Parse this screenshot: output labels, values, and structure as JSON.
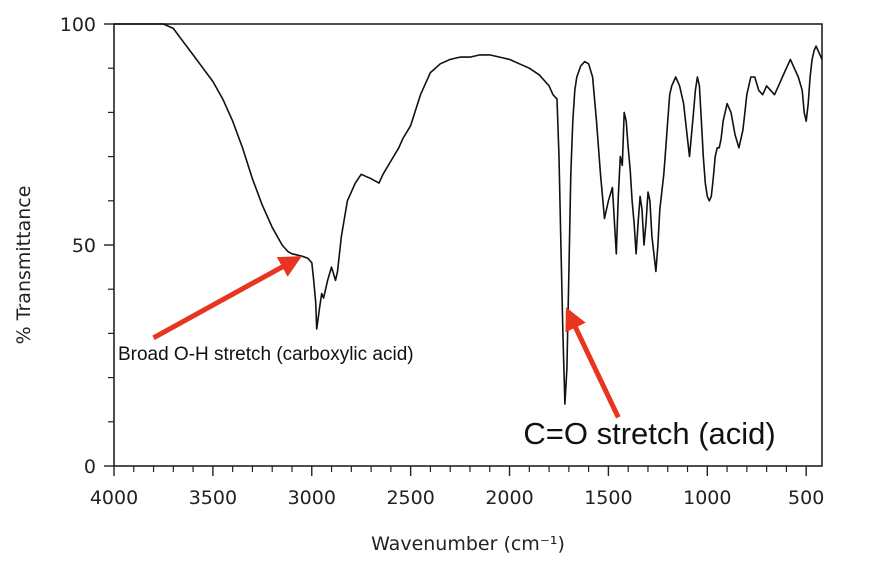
{
  "chart_data": {
    "type": "line",
    "title": "",
    "xlabel": "Wavenumber (cm⁻¹)",
    "ylabel": "% Transmittance",
    "xlim": [
      4000,
      420
    ],
    "ylim": [
      0,
      100
    ],
    "x_ticks": [
      4000,
      3500,
      3000,
      2500,
      2000,
      1500,
      1000,
      500
    ],
    "y_ticks": [
      0,
      50,
      100
    ],
    "x_tick_labels": [
      "4000",
      "3500",
      "3000",
      "2500",
      "2000",
      "1500",
      "1000",
      "500"
    ],
    "y_tick_labels": [
      "0",
      "50",
      "100"
    ],
    "grid": false,
    "series": [
      {
        "color": "#111111",
        "x": [
          4000,
          3900,
          3800,
          3750,
          3700,
          3650,
          3600,
          3550,
          3500,
          3450,
          3400,
          3350,
          3300,
          3250,
          3200,
          3150,
          3120,
          3100,
          3080,
          3050,
          3020,
          3000,
          2990,
          2980,
          2975,
          2960,
          2950,
          2940,
          2930,
          2920,
          2900,
          2880,
          2870,
          2850,
          2820,
          2780,
          2750,
          2700,
          2680,
          2660,
          2640,
          2600,
          2560,
          2540,
          2500,
          2450,
          2400,
          2350,
          2300,
          2250,
          2200,
          2150,
          2100,
          2050,
          2000,
          1950,
          1900,
          1850,
          1800,
          1780,
          1760,
          1750,
          1740,
          1730,
          1720,
          1710,
          1700,
          1690,
          1680,
          1670,
          1660,
          1640,
          1620,
          1600,
          1580,
          1560,
          1540,
          1520,
          1500,
          1480,
          1460,
          1450,
          1440,
          1430,
          1420,
          1410,
          1400,
          1390,
          1380,
          1370,
          1360,
          1350,
          1340,
          1330,
          1320,
          1310,
          1300,
          1290,
          1280,
          1270,
          1260,
          1250,
          1240,
          1230,
          1220,
          1210,
          1200,
          1190,
          1180,
          1170,
          1160,
          1140,
          1120,
          1100,
          1090,
          1080,
          1070,
          1060,
          1050,
          1040,
          1030,
          1020,
          1010,
          1000,
          990,
          980,
          970,
          960,
          950,
          940,
          930,
          920,
          910,
          900,
          880,
          860,
          840,
          820,
          810,
          800,
          790,
          780,
          760,
          740,
          720,
          700,
          680,
          660,
          640,
          620,
          600,
          580,
          560,
          540,
          520,
          510,
          500,
          490,
          480,
          470,
          460,
          450,
          440,
          430,
          420
        ],
        "y": [
          100,
          100,
          100,
          100,
          99,
          96,
          93,
          90,
          87,
          83,
          78,
          72,
          65,
          59,
          54,
          50,
          48.5,
          48,
          47.8,
          47.5,
          47,
          46,
          42,
          37,
          31,
          36,
          39,
          38,
          40,
          42,
          45,
          42,
          44,
          52,
          60,
          64,
          66,
          65,
          64.5,
          64,
          66,
          69,
          72,
          74,
          77,
          84,
          89,
          91,
          92,
          92.5,
          92.5,
          93,
          93,
          92.5,
          92,
          91,
          90,
          88.5,
          86,
          84,
          83,
          70,
          50,
          30,
          14,
          22,
          44,
          66,
          78,
          85,
          88,
          90.5,
          91.5,
          91,
          88,
          78,
          66,
          56,
          60,
          63,
          48,
          61,
          70,
          68,
          80,
          78,
          72,
          67,
          60,
          55,
          48,
          55,
          61,
          58,
          50,
          55,
          62,
          60,
          52,
          48,
          44,
          50,
          58,
          62,
          66,
          72,
          78,
          84,
          86,
          87,
          88,
          86,
          82,
          74,
          70,
          75,
          80,
          85,
          88,
          86,
          78,
          70,
          64,
          61,
          60,
          61,
          65,
          70,
          72,
          72,
          74,
          78,
          80,
          82,
          80,
          75,
          72,
          76,
          80,
          84,
          86,
          88,
          88,
          85,
          84,
          86,
          85,
          84,
          86,
          88,
          90,
          92,
          90,
          88,
          85,
          80,
          78,
          82,
          88,
          92,
          94,
          95,
          94,
          93,
          92
        ]
      }
    ],
    "annotations": [
      {
        "text": "Broad O-H stretch (carboxylic acid)",
        "arrow_to": [
          3070,
          47
        ],
        "arrow_from": [
          3800,
          29
        ],
        "text_anchor_x": 3980,
        "text_anchor_y": 24,
        "color": "#e8351f"
      },
      {
        "text": "C=O stretch (acid)",
        "arrow_to": [
          1705,
          35
        ],
        "arrow_from": [
          1450,
          11
        ],
        "text_anchor_x": 1930,
        "text_anchor_y": 5,
        "color": "#e8351f"
      }
    ]
  }
}
